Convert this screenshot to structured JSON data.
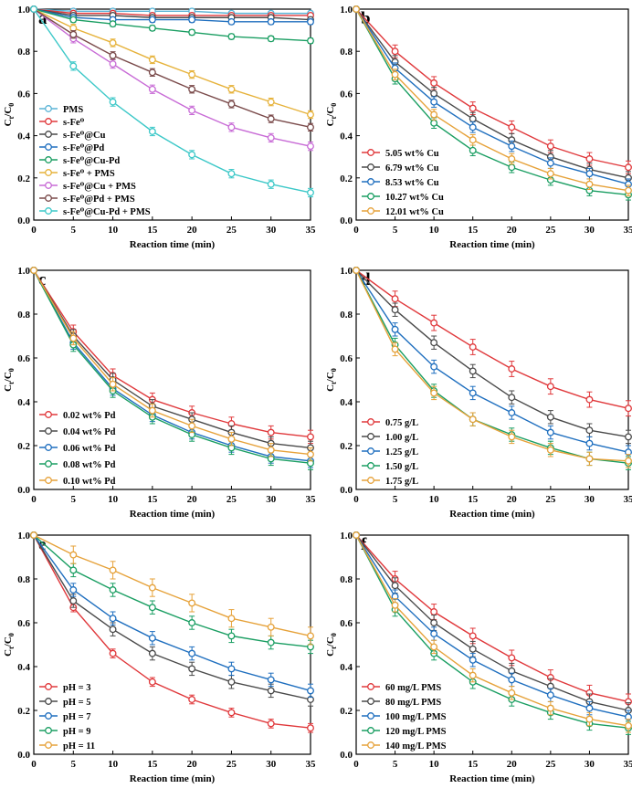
{
  "chart_data": [
    {
      "panel": "a",
      "type": "line",
      "x": [
        0,
        5,
        10,
        15,
        20,
        25,
        30,
        35
      ],
      "xlabel": "Reaction time (min)",
      "ylabel": "Ct/C0",
      "xlim": [
        0,
        35
      ],
      "ylim": [
        0,
        1.0
      ],
      "xticks": [
        0,
        5,
        10,
        15,
        20,
        25,
        30,
        35
      ],
      "yticks": [
        0.0,
        0.2,
        0.4,
        0.6,
        0.8,
        1.0
      ],
      "legend_position": "bottom-left",
      "series": [
        {
          "name": "PMS",
          "color": "#5ab4d6",
          "values": [
            1.0,
            0.99,
            0.99,
            0.99,
            0.99,
            0.98,
            0.98,
            0.98
          ],
          "err": 0.01
        },
        {
          "name": "s-Fe⁰",
          "color": "#e0383b",
          "values": [
            1.0,
            0.98,
            0.98,
            0.97,
            0.97,
            0.97,
            0.97,
            0.97
          ],
          "err": 0.01
        },
        {
          "name": "s-Fe⁰@Cu",
          "color": "#4a4a4a",
          "values": [
            1.0,
            0.97,
            0.97,
            0.96,
            0.96,
            0.96,
            0.96,
            0.95
          ],
          "err": 0.012
        },
        {
          "name": "s-Fe⁰@Pd",
          "color": "#1f6fbf",
          "values": [
            1.0,
            0.96,
            0.95,
            0.95,
            0.95,
            0.94,
            0.94,
            0.94
          ],
          "err": 0.012
        },
        {
          "name": "s-Fe⁰@Cu-Pd",
          "color": "#1a9e62",
          "values": [
            1.0,
            0.95,
            0.93,
            0.91,
            0.89,
            0.87,
            0.86,
            0.85
          ],
          "err": 0.012
        },
        {
          "name": "s-Fe⁰ + PMS",
          "color": "#e6b23a",
          "values": [
            1.0,
            0.91,
            0.84,
            0.76,
            0.69,
            0.62,
            0.56,
            0.5
          ],
          "err": 0.018
        },
        {
          "name": "s-Fe⁰@Cu + PMS",
          "color": "#c86bd6",
          "values": [
            1.0,
            0.86,
            0.74,
            0.62,
            0.52,
            0.44,
            0.39,
            0.35
          ],
          "err": 0.02
        },
        {
          "name": "s-Fe⁰@Pd + PMS",
          "color": "#7a4a4a",
          "values": [
            1.0,
            0.88,
            0.78,
            0.7,
            0.62,
            0.55,
            0.48,
            0.44
          ],
          "err": 0.018
        },
        {
          "name": "s-Fe⁰@Cu-Pd + PMS",
          "color": "#3cc8c8",
          "values": [
            1.0,
            0.73,
            0.56,
            0.42,
            0.31,
            0.22,
            0.17,
            0.13
          ],
          "err": 0.02
        }
      ]
    },
    {
      "panel": "b",
      "type": "line",
      "x": [
        0,
        5,
        10,
        15,
        20,
        25,
        30,
        35
      ],
      "xlabel": "Reaction time (min)",
      "ylabel": "Ct/C0",
      "xlim": [
        0,
        35
      ],
      "ylim": [
        0,
        1.0
      ],
      "xticks": [
        0,
        5,
        10,
        15,
        20,
        25,
        30,
        35
      ],
      "yticks": [
        0.0,
        0.2,
        0.4,
        0.6,
        0.8,
        1.0
      ],
      "legend_position": "bottom-left",
      "series": [
        {
          "name": "5.05  wt% Cu",
          "color": "#e0383b",
          "values": [
            1.0,
            0.8,
            0.65,
            0.53,
            0.44,
            0.35,
            0.29,
            0.25
          ],
          "err": 0.03
        },
        {
          "name": "6.79  wt% Cu",
          "color": "#4a4a4a",
          "values": [
            1.0,
            0.75,
            0.6,
            0.48,
            0.38,
            0.3,
            0.24,
            0.2
          ],
          "err": 0.03
        },
        {
          "name": "8.53  wt% Cu",
          "color": "#1f6fbf",
          "values": [
            1.0,
            0.72,
            0.56,
            0.44,
            0.35,
            0.27,
            0.22,
            0.17
          ],
          "err": 0.025
        },
        {
          "name": "10.27  wt% Cu",
          "color": "#1a9e62",
          "values": [
            1.0,
            0.67,
            0.46,
            0.33,
            0.25,
            0.19,
            0.14,
            0.12
          ],
          "err": 0.025
        },
        {
          "name": "12.01  wt% Cu",
          "color": "#e6a23a",
          "values": [
            1.0,
            0.69,
            0.5,
            0.38,
            0.29,
            0.22,
            0.17,
            0.14
          ],
          "err": 0.025
        }
      ]
    },
    {
      "panel": "c",
      "type": "line",
      "x": [
        0,
        5,
        10,
        15,
        20,
        25,
        30,
        35
      ],
      "xlabel": "Reaction time (min)",
      "ylabel": "Ct/C0",
      "xlim": [
        0,
        35
      ],
      "ylim": [
        0,
        1.0
      ],
      "xticks": [
        0,
        5,
        10,
        15,
        20,
        25,
        30,
        35
      ],
      "yticks": [
        0.0,
        0.2,
        0.4,
        0.6,
        0.8,
        1.0
      ],
      "legend_position": "bottom-left",
      "series": [
        {
          "name": "0.02 wt% Pd",
          "color": "#e0383b",
          "values": [
            1.0,
            0.72,
            0.52,
            0.41,
            0.35,
            0.3,
            0.26,
            0.24
          ],
          "err": 0.03
        },
        {
          "name": "0.04 wt% Pd",
          "color": "#4a4a4a",
          "values": [
            1.0,
            0.7,
            0.5,
            0.38,
            0.32,
            0.26,
            0.21,
            0.19
          ],
          "err": 0.03
        },
        {
          "name": "0.06 wt% Pd",
          "color": "#1f6fbf",
          "values": [
            1.0,
            0.67,
            0.46,
            0.34,
            0.26,
            0.2,
            0.15,
            0.13
          ],
          "err": 0.03
        },
        {
          "name": "0.08 wt% Pd",
          "color": "#1a9e62",
          "values": [
            1.0,
            0.66,
            0.45,
            0.33,
            0.25,
            0.19,
            0.14,
            0.12
          ],
          "err": 0.03
        },
        {
          "name": "0.10 wt% Pd",
          "color": "#e6a23a",
          "values": [
            1.0,
            0.69,
            0.48,
            0.36,
            0.29,
            0.23,
            0.18,
            0.16
          ],
          "err": 0.03
        }
      ]
    },
    {
      "panel": "d",
      "type": "line",
      "x": [
        0,
        5,
        10,
        15,
        20,
        25,
        30,
        35
      ],
      "xlabel": "Reaction time (min)",
      "ylabel": "Ct/C0",
      "xlim": [
        0,
        35
      ],
      "ylim": [
        0,
        1.0
      ],
      "xticks": [
        0,
        5,
        10,
        15,
        20,
        25,
        30,
        35
      ],
      "yticks": [
        0.0,
        0.2,
        0.4,
        0.6,
        0.8,
        1.0
      ],
      "legend_position": "bottom-left",
      "series": [
        {
          "name": "0.75 g/L",
          "color": "#e0383b",
          "values": [
            1.0,
            0.87,
            0.76,
            0.65,
            0.55,
            0.47,
            0.41,
            0.37
          ],
          "err": 0.035
        },
        {
          "name": "1.00 g/L",
          "color": "#4a4a4a",
          "values": [
            1.0,
            0.82,
            0.67,
            0.54,
            0.42,
            0.33,
            0.27,
            0.24
          ],
          "err": 0.03
        },
        {
          "name": "1.25 g/L",
          "color": "#1f6fbf",
          "values": [
            1.0,
            0.73,
            0.56,
            0.44,
            0.35,
            0.26,
            0.21,
            0.17
          ],
          "err": 0.03
        },
        {
          "name": "1.50 g/L",
          "color": "#1a9e62",
          "values": [
            1.0,
            0.66,
            0.45,
            0.32,
            0.25,
            0.19,
            0.14,
            0.12
          ],
          "err": 0.03
        },
        {
          "name": "1.75 g/L",
          "color": "#e6a23a",
          "values": [
            1.0,
            0.64,
            0.44,
            0.32,
            0.24,
            0.18,
            0.14,
            0.13
          ],
          "err": 0.03
        }
      ]
    },
    {
      "panel": "e",
      "type": "line",
      "x": [
        0,
        5,
        10,
        15,
        20,
        25,
        30,
        35
      ],
      "xlabel": "Reaction time (min)",
      "ylabel": "Ct/C0",
      "xlim": [
        0,
        35
      ],
      "ylim": [
        0,
        1.0
      ],
      "xticks": [
        0,
        5,
        10,
        15,
        20,
        25,
        30,
        35
      ],
      "yticks": [
        0.0,
        0.2,
        0.4,
        0.6,
        0.8,
        1.0
      ],
      "legend_position": "bottom-left",
      "series": [
        {
          "name": "pH = 3",
          "color": "#e0383b",
          "values": [
            1.0,
            0.67,
            0.46,
            0.33,
            0.25,
            0.19,
            0.14,
            0.12
          ],
          "err": 0.02
        },
        {
          "name": "pH = 5",
          "color": "#4a4a4a",
          "values": [
            1.0,
            0.7,
            0.57,
            0.46,
            0.39,
            0.33,
            0.29,
            0.25
          ],
          "err": 0.03
        },
        {
          "name": "pH = 7",
          "color": "#1f6fbf",
          "values": [
            1.0,
            0.75,
            0.62,
            0.53,
            0.46,
            0.39,
            0.34,
            0.29
          ],
          "err": 0.03
        },
        {
          "name": "pH = 9",
          "color": "#1a9e62",
          "values": [
            1.0,
            0.84,
            0.75,
            0.67,
            0.6,
            0.54,
            0.51,
            0.49
          ],
          "err": 0.03
        },
        {
          "name": "pH = 11",
          "color": "#e6a23a",
          "values": [
            1.0,
            0.91,
            0.84,
            0.76,
            0.69,
            0.62,
            0.58,
            0.54
          ],
          "err": 0.04
        }
      ]
    },
    {
      "panel": "f",
      "type": "line",
      "x": [
        0,
        5,
        10,
        15,
        20,
        25,
        30,
        35
      ],
      "xlabel": "Reaction time (min)",
      "ylabel": "Ct/C0",
      "xlim": [
        0,
        35
      ],
      "ylim": [
        0,
        1.0
      ],
      "xticks": [
        0,
        5,
        10,
        15,
        20,
        25,
        30,
        35
      ],
      "yticks": [
        0.0,
        0.2,
        0.4,
        0.6,
        0.8,
        1.0
      ],
      "legend_position": "bottom-left",
      "series": [
        {
          "name": "60  mg/L PMS",
          "color": "#e0383b",
          "values": [
            1.0,
            0.8,
            0.65,
            0.54,
            0.44,
            0.35,
            0.28,
            0.24
          ],
          "err": 0.035
        },
        {
          "name": "80  mg/L PMS",
          "color": "#4a4a4a",
          "values": [
            1.0,
            0.77,
            0.6,
            0.48,
            0.38,
            0.31,
            0.24,
            0.2
          ],
          "err": 0.035
        },
        {
          "name": "100 mg/L PMS",
          "color": "#1f6fbf",
          "values": [
            1.0,
            0.72,
            0.55,
            0.43,
            0.34,
            0.27,
            0.21,
            0.17
          ],
          "err": 0.03
        },
        {
          "name": "120 mg/L PMS",
          "color": "#1a9e62",
          "values": [
            1.0,
            0.66,
            0.46,
            0.33,
            0.25,
            0.19,
            0.14,
            0.12
          ],
          "err": 0.03
        },
        {
          "name": "140 mg/L PMS",
          "color": "#e6a23a",
          "values": [
            1.0,
            0.68,
            0.49,
            0.36,
            0.28,
            0.21,
            0.16,
            0.13
          ],
          "err": 0.03
        }
      ]
    }
  ]
}
